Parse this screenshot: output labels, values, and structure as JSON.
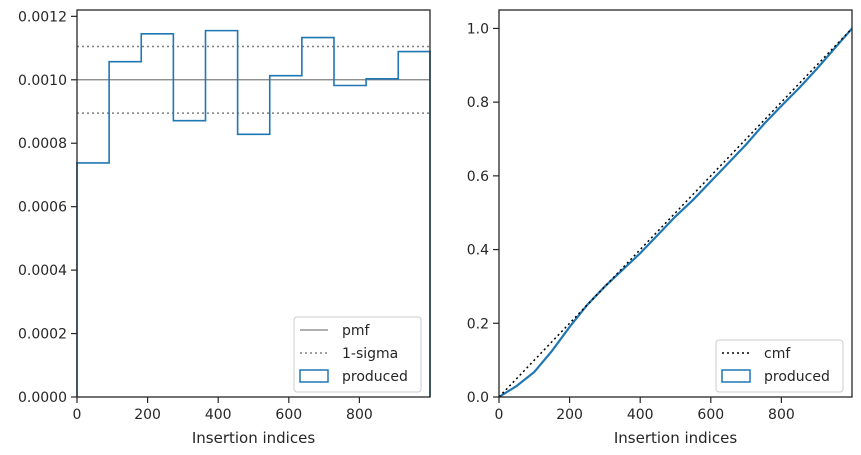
{
  "chart_data": [
    {
      "type": "histogram-step",
      "xlabel": "Insertion indices",
      "ylabel": "",
      "xlim": [
        0,
        1000
      ],
      "ylim": [
        0,
        0.00122
      ],
      "xticks": [
        0,
        200,
        400,
        600,
        800
      ],
      "yticks": [
        0,
        0.0002,
        0.0004,
        0.0006,
        0.0008,
        0.001,
        0.0012
      ],
      "ytick_labels": [
        "0.0000",
        "0.0002",
        "0.0004",
        "0.0006",
        "0.0008",
        "0.0010",
        "0.0012"
      ],
      "grid": false,
      "legend_position": "bottom-right",
      "pmf": 0.001,
      "sigma_band": [
        0.000895,
        0.001105
      ],
      "bin_edges": [
        0,
        91,
        182,
        273,
        364,
        455,
        546,
        637,
        728,
        819,
        910,
        1000
      ],
      "values": [
        0.000738,
        0.001057,
        0.001145,
        0.000871,
        0.001155,
        0.000828,
        0.001013,
        0.001133,
        0.000982,
        0.001003,
        0.001089
      ],
      "series": [
        {
          "name": "pmf",
          "color": "#7f7f7f",
          "style": "solid"
        },
        {
          "name": "1-sigma",
          "color": "#7f7f7f",
          "style": "dotted"
        },
        {
          "name": "produced",
          "color": "#1f77b4",
          "style": "step"
        }
      ]
    },
    {
      "type": "line",
      "xlabel": "Insertion indices",
      "ylabel": "",
      "xlim": [
        0,
        1000
      ],
      "ylim": [
        0,
        1.05
      ],
      "xticks": [
        0,
        200,
        400,
        600,
        800
      ],
      "yticks": [
        0,
        0.2,
        0.4,
        0.6,
        0.8,
        1.0
      ],
      "ytick_labels": [
        "0.0",
        "0.2",
        "0.4",
        "0.6",
        "0.8",
        "1.0"
      ],
      "grid": false,
      "legend_position": "bottom-right",
      "cmf": {
        "x": [
          0,
          1000
        ],
        "y": [
          0,
          1.0
        ]
      },
      "produced": {
        "x": [
          0,
          50,
          100,
          150,
          200,
          250,
          300,
          350,
          400,
          450,
          500,
          550,
          600,
          650,
          700,
          750,
          800,
          850,
          900,
          950,
          1000
        ],
        "y": [
          0,
          0.03,
          0.068,
          0.125,
          0.19,
          0.25,
          0.3,
          0.345,
          0.39,
          0.44,
          0.49,
          0.535,
          0.585,
          0.635,
          0.685,
          0.74,
          0.79,
          0.838,
          0.89,
          0.945,
          1.0
        ]
      },
      "series": [
        {
          "name": "cmf",
          "color": "#000000",
          "style": "dotted"
        },
        {
          "name": "produced",
          "color": "#1f77b4",
          "style": "solid"
        }
      ]
    }
  ]
}
